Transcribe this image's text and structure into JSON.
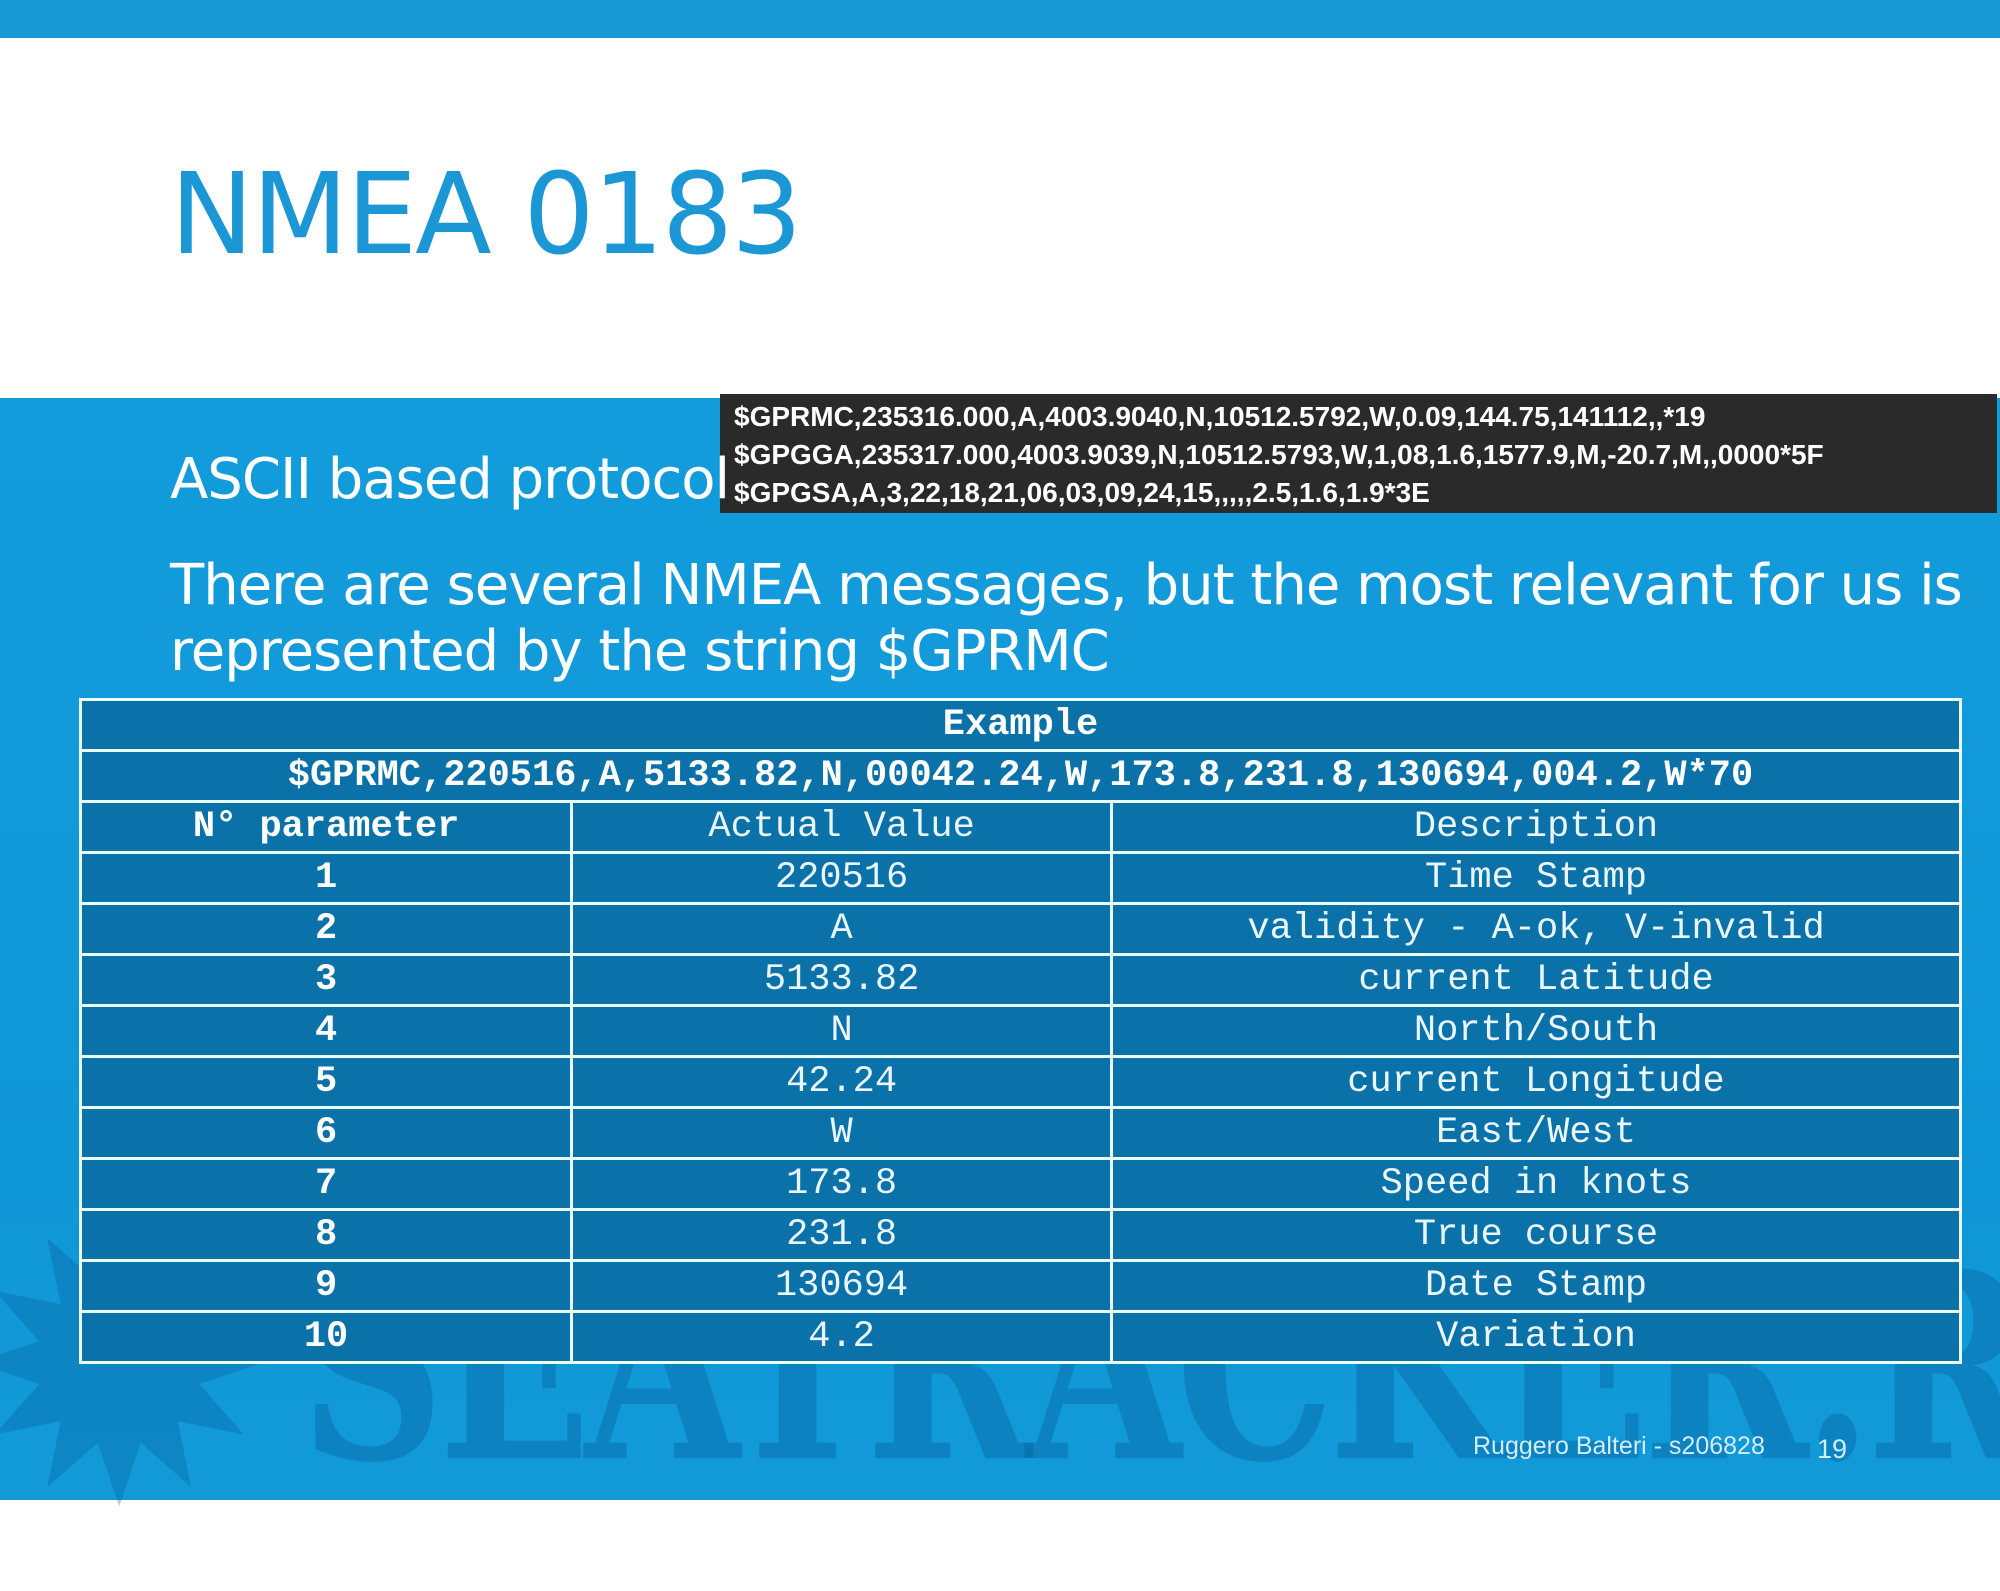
{
  "slide": {
    "title": "NMEA 0183",
    "bullet1": "ASCII based protocol",
    "bullet2_line1": "There are several NMEA messages, but the most relevant for us is",
    "bullet2_line2": "represented by the string $GPRMC",
    "code_lines": [
      "$GPRMC,235316.000,A,4003.9040,N,10512.5792,W,0.09,144.75,141112,,*19",
      "$GPGGA,235317.000,4003.9039,N,10512.5793,W,1,08,1.6,1577.9,M,-20.7,M,,0000*5F",
      "$GPGSA,A,3,22,18,21,06,03,09,24,15,,,,,2.5,1.6,1.9*3E"
    ],
    "table": {
      "caption": "Example",
      "example_string": "$GPRMC,220516,A,5133.82,N,00042.24,W,173.8,231.8,130694,004.2,W*70",
      "headers": [
        "N° parameter",
        "Actual Value",
        "Description"
      ],
      "rows": [
        [
          "1",
          "220516",
          "Time Stamp"
        ],
        [
          "2",
          "A",
          "validity - A-ok, V-invalid"
        ],
        [
          "3",
          "5133.82",
          "current Latitude"
        ],
        [
          "4",
          "N",
          "North/South"
        ],
        [
          "5",
          "42.24",
          "current Longitude"
        ],
        [
          "6",
          "W",
          "East/West"
        ],
        [
          "7",
          "173.8",
          "Speed in knots"
        ],
        [
          "8",
          "231.8",
          "True course"
        ],
        [
          "9",
          "130694",
          "Date Stamp"
        ],
        [
          "10",
          "4.2",
          "Variation"
        ]
      ]
    },
    "footer": "Ruggero Balteri - s206828",
    "page_number": "19",
    "watermark": "SEATRACKER.RU",
    "colors": {
      "accent": "#1899d6",
      "background": "#0f96d6",
      "table_row": "#0a72a8",
      "code_bg": "#2a2a2a"
    }
  }
}
